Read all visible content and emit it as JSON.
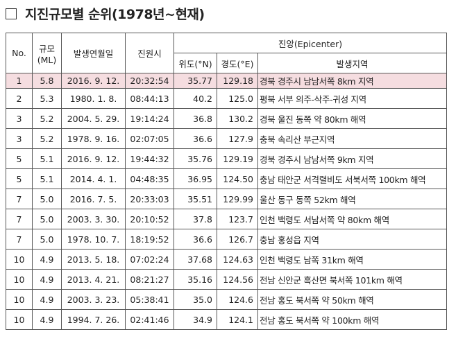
{
  "header": {
    "title": "지진규모별 순위(1978년~현재)"
  },
  "table": {
    "columns": {
      "no": "No.",
      "magnitude": "규모",
      "magnitude_unit": "(ML)",
      "date": "발생연월일",
      "time": "진원시",
      "epicenter": "진앙(Epicenter)",
      "lat": "위도(°N)",
      "lon": "경도(°E)",
      "region": "발생지역"
    },
    "rows": [
      [
        "1",
        "5.8",
        "2016. 9. 12.",
        "20:32:54",
        "35.77",
        "129.18",
        "경북 경주시 남남서쪽 8km 지역"
      ],
      [
        "2",
        "5.3",
        "1980. 1. 8.",
        "08:44:13",
        "40.2",
        "125.0",
        "평북 서부 의주-삭주-귀성 지역"
      ],
      [
        "3",
        "5.2",
        "2004. 5. 29.",
        "19:14:24",
        "36.8",
        "130.2",
        "경북 울진 동쪽 약 80km 해역"
      ],
      [
        "3",
        "5.2",
        "1978. 9. 16.",
        "02:07:05",
        "36.6",
        "127.9",
        "충북 속리산 부근지역"
      ],
      [
        "5",
        "5.1",
        "2016. 9. 12.",
        "19:44:32",
        "35.76",
        "129.19",
        "경북 경주시 남남서쪽 9km 지역"
      ],
      [
        "5",
        "5.1",
        "2014. 4. 1.",
        "04:48:35",
        "36.95",
        "124.50",
        "충남 태안군 서격렬비도 서북서쪽 100km 해역"
      ],
      [
        "7",
        "5.0",
        "2016. 7. 5.",
        "20:33:03",
        "35.51",
        "129.99",
        "울산 동구 동쪽 52km 해역"
      ],
      [
        "7",
        "5.0",
        "2003. 3. 30.",
        "20:10:52",
        "37.8",
        "123.7",
        "인천 백령도 서남서쪽 약 80km 해역"
      ],
      [
        "7",
        "5.0",
        "1978. 10. 7.",
        "18:19:52",
        "36.6",
        "126.7",
        "충남 홍성읍 지역"
      ],
      [
        "10",
        "4.9",
        "2013. 5. 18.",
        "07:02:24",
        "37.68",
        "124.63",
        "인천 백령도 남쪽 31km 해역"
      ],
      [
        "10",
        "4.9",
        "2013. 4. 21.",
        "08:21:27",
        "35.16",
        "124.56",
        "전남 신안군 흑산면 북서쪽 101km 해역"
      ],
      [
        "10",
        "4.9",
        "2003. 3. 23.",
        "05:38:41",
        "35.0",
        "124.6",
        "전남 홍도 북서쪽 약 50km 해역"
      ],
      [
        "10",
        "4.9",
        "1994. 7. 26.",
        "02:41:46",
        "34.9",
        "124.1",
        "전남 홍도 북서쪽 약 100km 해역"
      ]
    ]
  }
}
